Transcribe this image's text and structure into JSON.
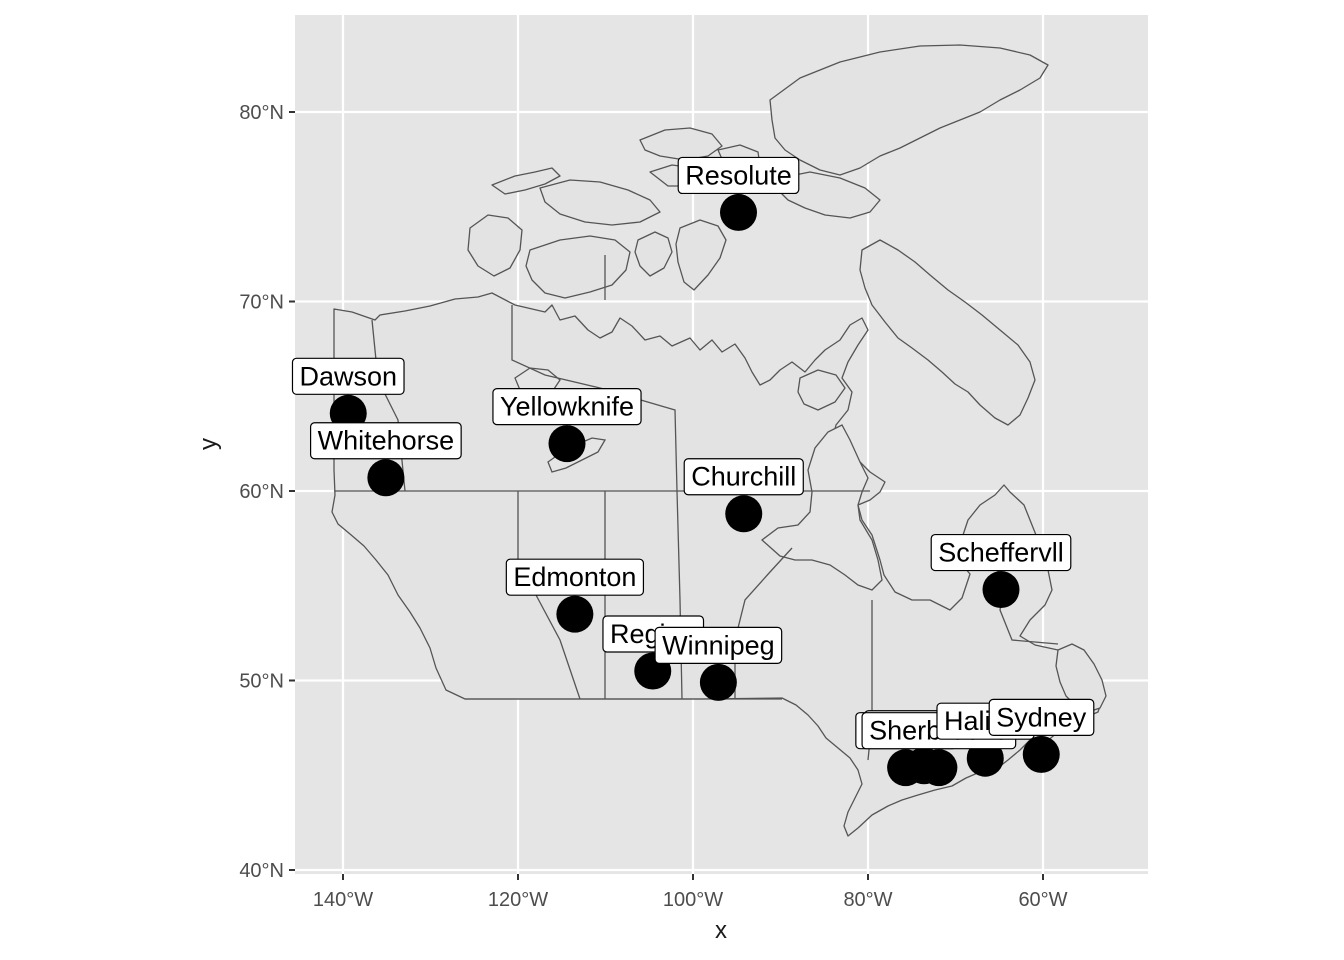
{
  "chart_data": {
    "type": "scatter",
    "subtype": "map",
    "xlabel": "x",
    "ylabel": "y",
    "xlim": [
      -145,
      -48
    ],
    "ylim": [
      40,
      85
    ],
    "x_ticks": [
      {
        "value": -140,
        "label": "140°W"
      },
      {
        "value": -120,
        "label": "120°W"
      },
      {
        "value": -100,
        "label": "100°W"
      },
      {
        "value": -80,
        "label": "80°W"
      },
      {
        "value": -60,
        "label": "60°W"
      }
    ],
    "y_ticks": [
      {
        "value": 40,
        "label": "40°N"
      },
      {
        "value": 50,
        "label": "50°N"
      },
      {
        "value": 60,
        "label": "60°N"
      },
      {
        "value": 70,
        "label": "70°N"
      },
      {
        "value": 80,
        "label": "80°N"
      }
    ],
    "grid": true,
    "panel_background": "#e5e5e5",
    "grid_color": "#ffffff",
    "land_fill": "#e3e3e3",
    "border_color": "#555555",
    "point_color": "#000000",
    "points": [
      {
        "name": "Dawson",
        "lon": -139.4,
        "lat": 64.1
      },
      {
        "name": "Whitehorse",
        "lon": -135.1,
        "lat": 60.7
      },
      {
        "name": "Yellowknife",
        "lon": -114.4,
        "lat": 62.5
      },
      {
        "name": "Resolute",
        "lon": -94.8,
        "lat": 74.7
      },
      {
        "name": "Churchill",
        "lon": -94.2,
        "lat": 58.8
      },
      {
        "name": "Edmonton",
        "lon": -113.5,
        "lat": 53.5
      },
      {
        "name": "Regina",
        "lon": -104.6,
        "lat": 50.5
      },
      {
        "name": "Winnipeg",
        "lon": -97.1,
        "lat": 49.9
      },
      {
        "name": "Scheffervll",
        "lon": -64.8,
        "lat": 54.8
      },
      {
        "name": "Ottawa",
        "lon": -75.7,
        "lat": 45.4
      },
      {
        "name": "Montreal",
        "lon": -73.6,
        "lat": 45.5
      },
      {
        "name": "Sherbrooke",
        "lon": -71.9,
        "lat": 45.4
      },
      {
        "name": "Halifax",
        "lon": -66.6,
        "lat": 45.9
      },
      {
        "name": "Sydney",
        "lon": -60.2,
        "lat": 46.1
      }
    ]
  }
}
